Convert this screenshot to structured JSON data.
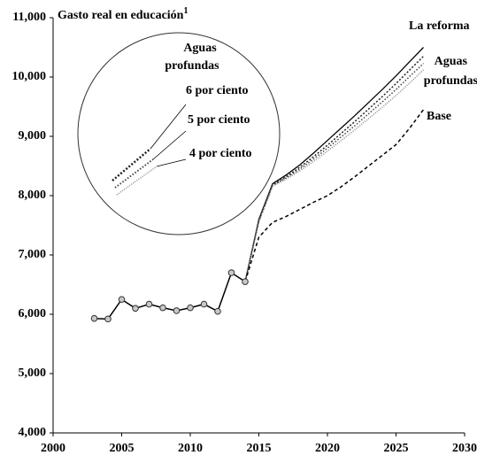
{
  "chart_data": {
    "type": "line",
    "title": "Gasto real en educación",
    "title_note": "1",
    "x": [
      2003,
      2004,
      2005,
      2006,
      2007,
      2008,
      2009,
      2010,
      2011,
      2012,
      2013,
      2014,
      2015,
      2016,
      2017,
      2018,
      2019,
      2020,
      2021,
      2022,
      2023,
      2024,
      2025,
      2026,
      2027
    ],
    "xlim": [
      2000,
      2030
    ],
    "xticks": [
      2000,
      2005,
      2010,
      2015,
      2020,
      2025,
      2030
    ],
    "ylim": [
      4000,
      11000
    ],
    "yticks": [
      {
        "value": 4000,
        "label": "4,000"
      },
      {
        "value": 5000,
        "label": "5,000"
      },
      {
        "value": 6000,
        "label": "6,000"
      },
      {
        "value": 7000,
        "label": "7,000"
      },
      {
        "value": 8000,
        "label": "8,000"
      },
      {
        "value": 9000,
        "label": "9,000"
      },
      {
        "value": 10000,
        "label": "10,000"
      },
      {
        "value": 11000,
        "label": "11,000"
      }
    ],
    "history": {
      "color": "#000000",
      "marker_color": "#c8c8c8",
      "values": [
        5930,
        5920,
        6250,
        6100,
        6170,
        6110,
        6060,
        6110,
        6170,
        6050,
        6700,
        6550,
        null,
        null,
        null,
        null,
        null,
        null,
        null,
        null,
        null,
        null,
        null,
        null,
        null
      ]
    },
    "series": [
      {
        "name": "La reforma",
        "color": "#000000",
        "dash": "none",
        "values": [
          null,
          null,
          null,
          null,
          null,
          null,
          null,
          null,
          null,
          null,
          null,
          6550,
          7600,
          8200,
          8350,
          8520,
          8720,
          8930,
          9140,
          9350,
          9570,
          9790,
          10020,
          10260,
          10500
        ]
      },
      {
        "name": "6 por ciento",
        "color": "#222222",
        "dash": "2 2",
        "values": [
          null,
          null,
          null,
          null,
          null,
          null,
          null,
          null,
          null,
          null,
          null,
          6550,
          7580,
          8180,
          8320,
          8480,
          8660,
          8850,
          9050,
          9250,
          9460,
          9670,
          9890,
          10120,
          10350
        ]
      },
      {
        "name": "5 por ciento",
        "color": "#444444",
        "dash": "1.5 2",
        "values": [
          null,
          null,
          null,
          null,
          null,
          null,
          null,
          null,
          null,
          null,
          null,
          6550,
          7570,
          8170,
          8300,
          8450,
          8620,
          8800,
          8990,
          9180,
          9380,
          9580,
          9790,
          10010,
          10230
        ]
      },
      {
        "name": "4 por ciento",
        "color": "#888888",
        "dash": "1 1.5",
        "values": [
          null,
          null,
          null,
          null,
          null,
          null,
          null,
          null,
          null,
          null,
          null,
          6550,
          7560,
          8160,
          8280,
          8420,
          8580,
          8750,
          8930,
          9110,
          9300,
          9490,
          9690,
          9900,
          10120
        ]
      },
      {
        "name": "Base",
        "color": "#000000",
        "dash": "4 3",
        "values": [
          null,
          null,
          null,
          null,
          null,
          null,
          null,
          null,
          null,
          null,
          null,
          6550,
          7300,
          7550,
          7650,
          7770,
          7890,
          8000,
          8150,
          8320,
          8500,
          8680,
          8860,
          9140,
          9450
        ]
      }
    ],
    "annotations": [
      [
        "Aguas",
        "profundas"
      ],
      [
        "Aguas",
        "profundas"
      ]
    ]
  }
}
